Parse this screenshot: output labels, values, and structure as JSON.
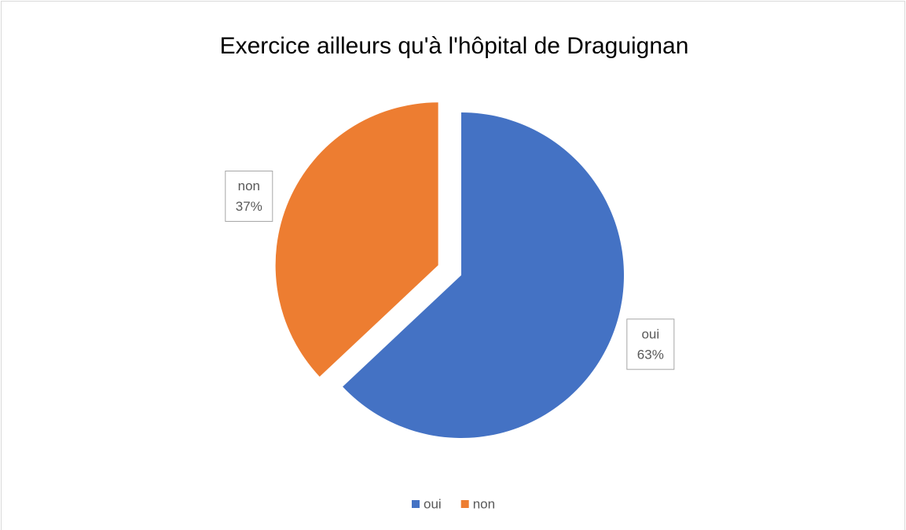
{
  "chart_data": {
    "type": "pie",
    "title": "Exercice ailleurs qu'à l'hôpital de Draguignan",
    "categories": [
      "oui",
      "non"
    ],
    "values": [
      63,
      37
    ],
    "value_labels": [
      "63%",
      "37%"
    ],
    "colors": [
      "#4472c4",
      "#ed7d31"
    ],
    "legend": "bottom"
  }
}
